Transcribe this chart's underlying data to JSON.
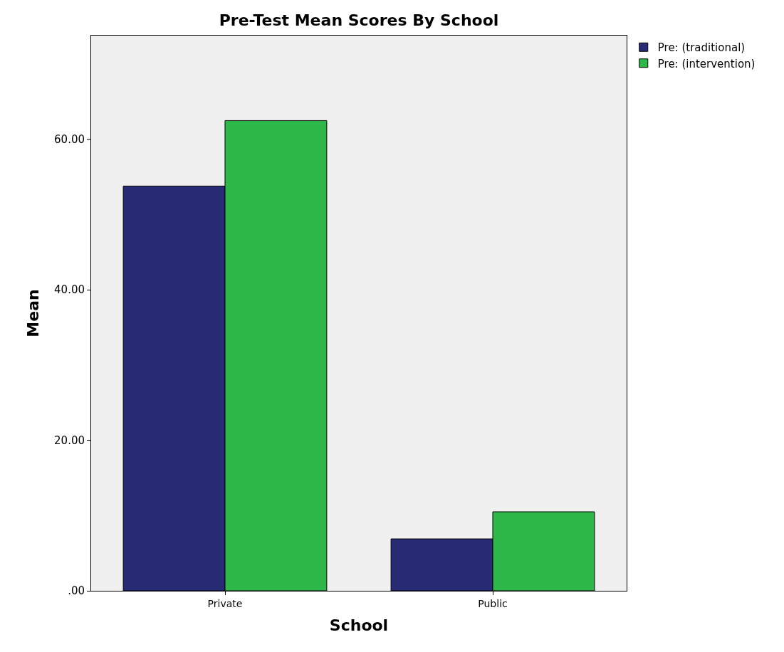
{
  "chart_data": {
    "type": "bar",
    "title": "Pre-Test Mean Scores By School",
    "xlabel": "School",
    "ylabel": "Mean",
    "categories": [
      "Private",
      "Public"
    ],
    "series": [
      {
        "name": "Pre: (traditional)",
        "color": "#282a73",
        "values": [
          53.8,
          6.9
        ]
      },
      {
        "name": "Pre: (intervention)",
        "color": "#2fb84a",
        "values": [
          62.5,
          10.5
        ]
      }
    ],
    "ylim": [
      0,
      73.8
    ],
    "yticks": [
      {
        "value": 0,
        "label": ".00"
      },
      {
        "value": 20,
        "label": "20.00"
      },
      {
        "value": 40,
        "label": "40.00"
      },
      {
        "value": 60,
        "label": "60.00"
      }
    ],
    "grid": false,
    "legend": "top right"
  }
}
